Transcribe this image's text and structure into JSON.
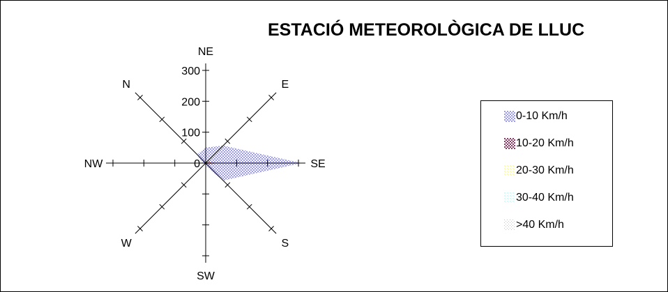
{
  "chart_data": {
    "type": "radar",
    "title": "ESTACIÓ METEOROLÒGICA DE LLUC",
    "directions": [
      "NE",
      "E",
      "SE",
      "S",
      "SW",
      "W",
      "NW",
      "N"
    ],
    "radial_ticks": [
      0,
      100,
      200,
      300
    ],
    "radial_range": [
      0,
      300
    ],
    "grid": false,
    "legend_position": "right",
    "series": [
      {
        "name": "0-10 Km/h",
        "color": "#9999ff",
        "pattern": "fine-check",
        "values": [
          50,
          80,
          310,
          80,
          10,
          5,
          10,
          40
        ]
      },
      {
        "name": "10-20 Km/h",
        "color": "#993366",
        "pattern": "fine-check",
        "values": [
          3,
          8,
          35,
          8,
          2,
          1,
          2,
          5
        ]
      },
      {
        "name": "20-30 Km/h",
        "color": "#ffff99",
        "pattern": "dots",
        "values": [
          1,
          2,
          5,
          2,
          0,
          0,
          1,
          2
        ]
      },
      {
        "name": "30-40 Km/h",
        "color": "#ccffff",
        "pattern": "dots",
        "values": [
          0,
          1,
          1,
          0,
          0,
          0,
          0,
          1
        ]
      },
      {
        "name": ">40 Km/h",
        "color": "#ffcc00",
        "pattern": "diag-dots",
        "values": [
          0,
          0,
          0,
          0,
          0,
          0,
          0,
          0
        ]
      }
    ]
  }
}
